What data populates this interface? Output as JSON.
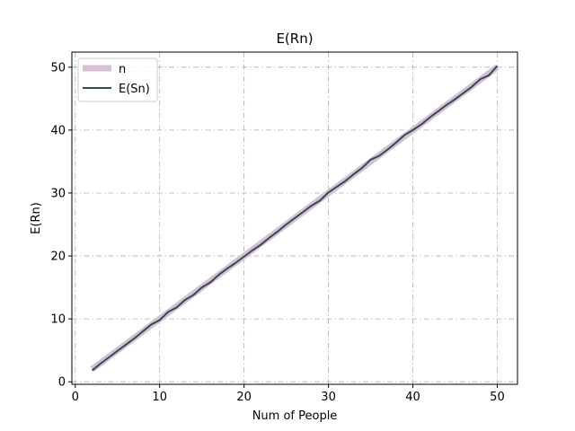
{
  "chart_data": {
    "type": "line",
    "title": "E(Rn)",
    "xlabel": "Num of People",
    "ylabel": "E(Rn)",
    "xlim": [
      -0.4,
      52.4
    ],
    "ylim": [
      -0.4,
      52.4
    ],
    "xticks": [
      0,
      10,
      20,
      30,
      40,
      50
    ],
    "yticks": [
      0,
      10,
      20,
      30,
      40,
      50
    ],
    "grid": true,
    "legend_position": "top-left",
    "series": [
      {
        "name": "n",
        "color": "#d8bfd8",
        "x": [
          2,
          3,
          4,
          5,
          6,
          7,
          8,
          9,
          10,
          11,
          12,
          13,
          14,
          15,
          16,
          17,
          18,
          19,
          20,
          21,
          22,
          23,
          24,
          25,
          26,
          27,
          28,
          29,
          30,
          31,
          32,
          33,
          34,
          35,
          36,
          37,
          38,
          39,
          40,
          41,
          42,
          43,
          44,
          45,
          46,
          47,
          48,
          49,
          50
        ],
        "y": [
          2,
          3,
          4,
          5,
          6,
          7,
          8,
          9,
          10,
          11,
          12,
          13,
          14,
          15,
          16,
          17,
          18,
          19,
          20,
          21,
          22,
          23,
          24,
          25,
          26,
          27,
          28,
          29,
          30,
          31,
          32,
          33,
          34,
          35,
          36,
          37,
          38,
          39,
          40,
          41,
          42,
          43,
          44,
          45,
          46,
          47,
          48,
          49,
          50
        ]
      },
      {
        "name": "E(Sn)",
        "color": "#2f4f4f",
        "x": [
          2,
          3,
          4,
          5,
          6,
          7,
          8,
          9,
          10,
          11,
          12,
          13,
          14,
          15,
          16,
          17,
          18,
          19,
          20,
          21,
          22,
          23,
          24,
          25,
          26,
          27,
          28,
          29,
          30,
          31,
          32,
          33,
          34,
          35,
          36,
          37,
          38,
          39,
          40,
          41,
          42,
          43,
          44,
          45,
          46,
          47,
          48,
          49,
          50
        ],
        "y": [
          1.8,
          2.9,
          3.9,
          4.9,
          5.9,
          6.9,
          8.0,
          9.1,
          9.8,
          11.1,
          11.8,
          13.0,
          13.8,
          15.0,
          15.8,
          17.0,
          18.0,
          18.9,
          19.9,
          20.9,
          21.8,
          22.9,
          23.9,
          25.0,
          26.0,
          27.0,
          28.0,
          28.8,
          30.1,
          31.0,
          31.9,
          33.0,
          34.0,
          35.3,
          35.9,
          36.9,
          38.0,
          39.2,
          40.0,
          40.9,
          42.0,
          43.0,
          44.0,
          44.9,
          45.9,
          46.9,
          48.1,
          48.7,
          50.2
        ]
      }
    ]
  }
}
